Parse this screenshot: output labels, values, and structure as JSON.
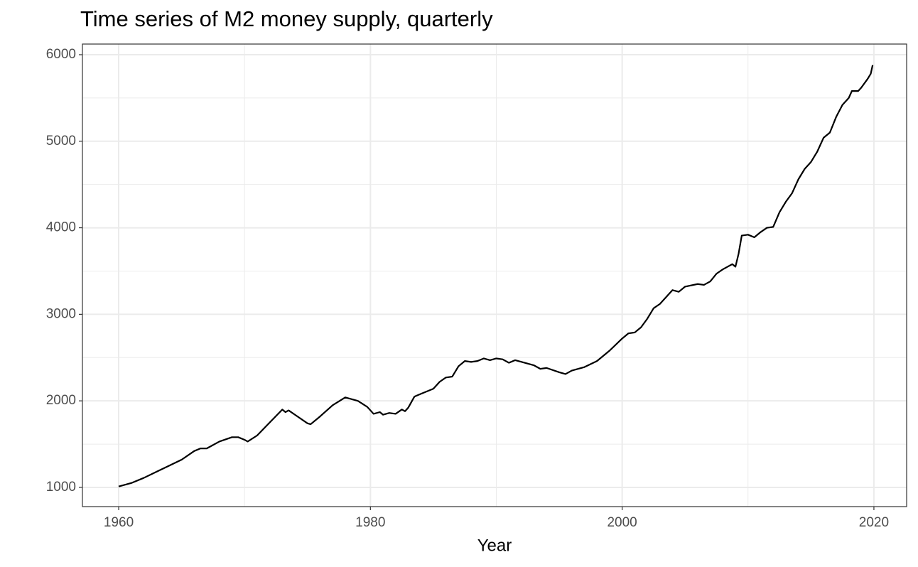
{
  "chart_data": {
    "type": "line",
    "title": "Time series of M2 money supply, quarterly",
    "x_label": "Year",
    "x": [
      1960,
      1961,
      1962,
      1963,
      1964,
      1965,
      1966,
      1966.5,
      1967,
      1968,
      1969,
      1969.5,
      1970,
      1970.25,
      1971,
      1972,
      1973,
      1973.25,
      1973.5,
      1974,
      1975,
      1975.25,
      1976,
      1977,
      1978,
      1979,
      1979.75,
      1980.25,
      1980.75,
      1981,
      1981.5,
      1982,
      1982.5,
      1982.75,
      1983,
      1983.5,
      1984,
      1985,
      1985.5,
      1986,
      1986.5,
      1987,
      1987.5,
      1988,
      1988.5,
      1989,
      1989.5,
      1990,
      1990.5,
      1991,
      1991.5,
      1992,
      1993,
      1993.5,
      1994,
      1995,
      1995.5,
      1996,
      1997,
      1998,
      1999,
      2000,
      2000.5,
      2001,
      2001.5,
      2002,
      2002.5,
      2003,
      2004,
      2004.5,
      2005,
      2006,
      2006.5,
      2007,
      2007.5,
      2008,
      2008.5,
      2008.75,
      2009,
      2009.25,
      2009.5,
      2010,
      2010.5,
      2011,
      2011.5,
      2012,
      2012.5,
      2013,
      2013.5,
      2014,
      2014.5,
      2015,
      2015.5,
      2016,
      2016.5,
      2017,
      2017.5,
      2018,
      2018.25,
      2018.75,
      2019,
      2019.5,
      2019.75,
      2019.9
    ],
    "series": [
      {
        "name": "M2",
        "color": "#000000",
        "values": [
          1010,
          1050,
          1110,
          1180,
          1250,
          1320,
          1420,
          1450,
          1450,
          1530,
          1580,
          1580,
          1550,
          1530,
          1600,
          1750,
          1900,
          1870,
          1890,
          1840,
          1740,
          1730,
          1820,
          1950,
          2040,
          2000,
          1930,
          1850,
          1870,
          1840,
          1860,
          1850,
          1900,
          1880,
          1920,
          2050,
          2080,
          2140,
          2220,
          2270,
          2280,
          2400,
          2460,
          2450,
          2460,
          2490,
          2470,
          2490,
          2480,
          2440,
          2470,
          2450,
          2410,
          2370,
          2380,
          2330,
          2310,
          2350,
          2390,
          2460,
          2580,
          2720,
          2780,
          2790,
          2850,
          2950,
          3070,
          3120,
          3280,
          3260,
          3320,
          3350,
          3340,
          3380,
          3470,
          3520,
          3560,
          3580,
          3550,
          3700,
          3910,
          3920,
          3890,
          3950,
          4000,
          4010,
          4180,
          4300,
          4400,
          4560,
          4680,
          4760,
          4880,
          5040,
          5100,
          5280,
          5420,
          5500,
          5580,
          5580,
          5620,
          5720,
          5780,
          5880
        ]
      }
    ],
    "xlim": [
      1957.12,
      2022.6
    ],
    "xticks": [
      1960,
      1980,
      2000,
      2020
    ],
    "x_minor_grid": [
      1970,
      1990,
      2010
    ],
    "ylim": [
      778,
      6123
    ],
    "yticks": [
      1000,
      2000,
      3000,
      4000,
      5000,
      6000
    ],
    "y_minor_grid": [
      1500,
      2500,
      3500,
      4500,
      5500
    ],
    "grid": true
  }
}
